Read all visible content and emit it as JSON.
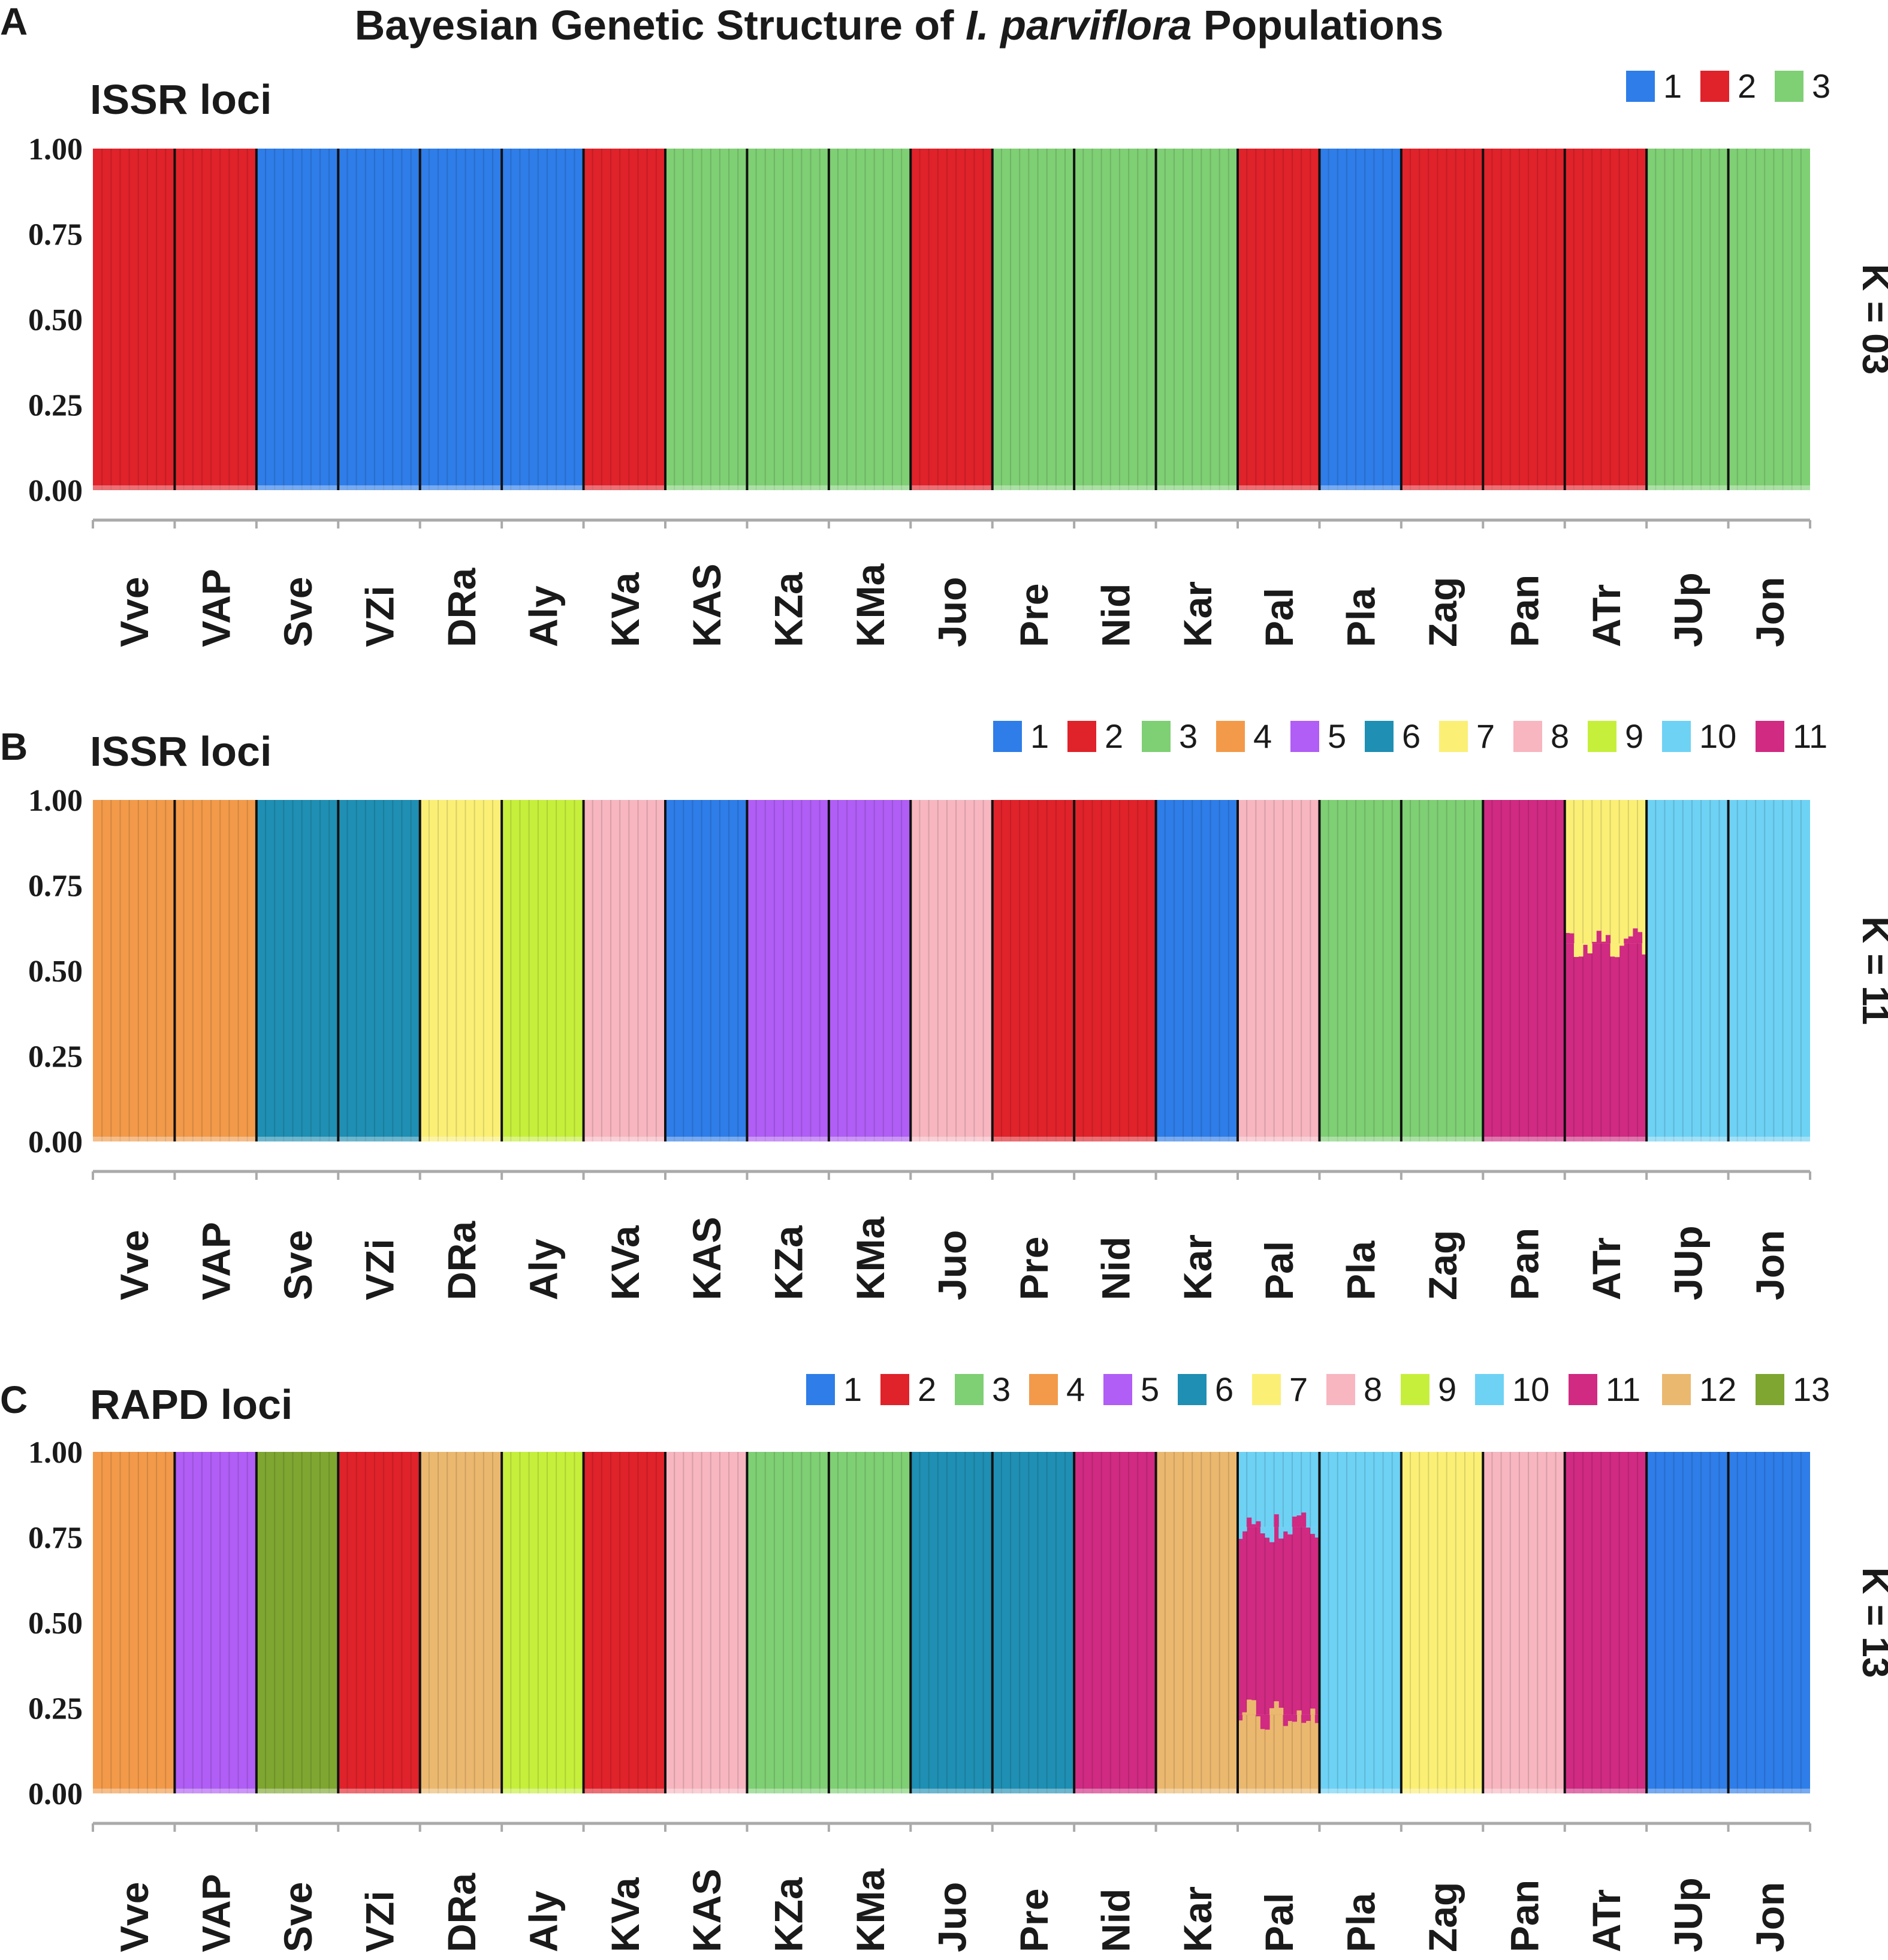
{
  "title": {
    "before": "Bayesian Genetic  Structure of ",
    "italic": "I. parviflora",
    "after": " Populations"
  },
  "colors": {
    "1": "#2e7de8",
    "2": "#e0222a",
    "3": "#7fcf74",
    "4": "#f29a4a",
    "5": "#b05ef5",
    "6": "#1f8fb3",
    "7": "#fbef76",
    "8": "#f7b6c0",
    "9": "#c6ef3c",
    "10": "#6ed2f5",
    "11": "#d02a82",
    "12": "#ebb86f",
    "13": "#7ea631"
  },
  "chart_data": [
    {
      "type": "bar",
      "stacked": true,
      "panel": "A",
      "subtitle": "ISSR loci",
      "k_label": "K = 03",
      "ylabels": [
        "1.00",
        "0.75",
        "0.50",
        "0.25",
        "0.00"
      ],
      "ylim": [
        0,
        1
      ],
      "legend": [
        "1",
        "2",
        "3"
      ],
      "categories": [
        "Vve",
        "VAP",
        "Sve",
        "VZi",
        "DRa",
        "Aly",
        "KVa",
        "KAS",
        "KZa",
        "KMa",
        "Juo",
        "Pre",
        "Nid",
        "Kar",
        "Pal",
        "Pla",
        "Zag",
        "Pan",
        "ATr",
        "JUp",
        "Jon"
      ],
      "assignments": [
        [
          {
            "c": "2",
            "v": 1
          }
        ],
        [
          {
            "c": "2",
            "v": 1
          }
        ],
        [
          {
            "c": "1",
            "v": 1
          }
        ],
        [
          {
            "c": "1",
            "v": 1
          }
        ],
        [
          {
            "c": "1",
            "v": 1
          }
        ],
        [
          {
            "c": "1",
            "v": 1
          }
        ],
        [
          {
            "c": "2",
            "v": 1
          }
        ],
        [
          {
            "c": "3",
            "v": 1
          }
        ],
        [
          {
            "c": "3",
            "v": 1
          }
        ],
        [
          {
            "c": "3",
            "v": 1
          }
        ],
        [
          {
            "c": "2",
            "v": 1
          }
        ],
        [
          {
            "c": "3",
            "v": 1
          }
        ],
        [
          {
            "c": "3",
            "v": 1
          }
        ],
        [
          {
            "c": "3",
            "v": 1
          }
        ],
        [
          {
            "c": "2",
            "v": 1
          }
        ],
        [
          {
            "c": "1",
            "v": 1
          }
        ],
        [
          {
            "c": "2",
            "v": 1
          }
        ],
        [
          {
            "c": "2",
            "v": 1
          }
        ],
        [
          {
            "c": "2",
            "v": 1
          }
        ],
        [
          {
            "c": "3",
            "v": 1
          }
        ],
        [
          {
            "c": "3",
            "v": 1
          }
        ]
      ]
    },
    {
      "type": "bar",
      "stacked": true,
      "panel": "B",
      "subtitle": "ISSR loci",
      "k_label": "K = 11",
      "ylabels": [
        "1.00",
        "0.75",
        "0.50",
        "0.25",
        "0.00"
      ],
      "ylim": [
        0,
        1
      ],
      "legend": [
        "1",
        "2",
        "3",
        "4",
        "5",
        "6",
        "7",
        "8",
        "9",
        "10",
        "11"
      ],
      "categories": [
        "Vve",
        "VAP",
        "Sve",
        "VZi",
        "DRa",
        "Aly",
        "KVa",
        "KAS",
        "KZa",
        "KMa",
        "Juo",
        "Pre",
        "Nid",
        "Kar",
        "Pal",
        "Pla",
        "Zag",
        "Pan",
        "ATr",
        "JUp",
        "Jon"
      ],
      "assignments": [
        [
          {
            "c": "4",
            "v": 1
          }
        ],
        [
          {
            "c": "4",
            "v": 1
          }
        ],
        [
          {
            "c": "6",
            "v": 1
          }
        ],
        [
          {
            "c": "6",
            "v": 1
          }
        ],
        [
          {
            "c": "7",
            "v": 1
          }
        ],
        [
          {
            "c": "9",
            "v": 1
          }
        ],
        [
          {
            "c": "8",
            "v": 1
          }
        ],
        [
          {
            "c": "1",
            "v": 1
          }
        ],
        [
          {
            "c": "5",
            "v": 1
          }
        ],
        [
          {
            "c": "5",
            "v": 1
          }
        ],
        [
          {
            "c": "8",
            "v": 1
          }
        ],
        [
          {
            "c": "2",
            "v": 1
          }
        ],
        [
          {
            "c": "2",
            "v": 1
          }
        ],
        [
          {
            "c": "1",
            "v": 1
          }
        ],
        [
          {
            "c": "8",
            "v": 1
          }
        ],
        [
          {
            "c": "3",
            "v": 1
          }
        ],
        [
          {
            "c": "3",
            "v": 1
          }
        ],
        [
          {
            "c": "11",
            "v": 1
          }
        ],
        [
          {
            "c": "11",
            "v": 0.58
          },
          {
            "c": "7",
            "v": 0.42
          }
        ],
        [
          {
            "c": "10",
            "v": 1
          }
        ],
        [
          {
            "c": "10",
            "v": 1
          }
        ]
      ]
    },
    {
      "type": "bar",
      "stacked": true,
      "panel": "C",
      "subtitle": "RAPD loci",
      "k_label": "K = 13",
      "ylabels": [
        "1.00",
        "0.75",
        "0.50",
        "0.25",
        "0.00"
      ],
      "ylim": [
        0,
        1
      ],
      "legend": [
        "1",
        "2",
        "3",
        "4",
        "5",
        "6",
        "7",
        "8",
        "9",
        "10",
        "11",
        "12",
        "13"
      ],
      "categories": [
        "Vve",
        "VAP",
        "Sve",
        "VZi",
        "DRa",
        "Aly",
        "KVa",
        "KAS",
        "KZa",
        "KMa",
        "Juo",
        "Pre",
        "Nid",
        "Kar",
        "Pal",
        "Pla",
        "Zag",
        "Pan",
        "ATr",
        "JUp",
        "Jon"
      ],
      "assignments": [
        [
          {
            "c": "4",
            "v": 1
          }
        ],
        [
          {
            "c": "5",
            "v": 1
          }
        ],
        [
          {
            "c": "13",
            "v": 1
          }
        ],
        [
          {
            "c": "2",
            "v": 1
          }
        ],
        [
          {
            "c": "12",
            "v": 1
          }
        ],
        [
          {
            "c": "9",
            "v": 1
          }
        ],
        [
          {
            "c": "2",
            "v": 1
          }
        ],
        [
          {
            "c": "8",
            "v": 1
          }
        ],
        [
          {
            "c": "3",
            "v": 1
          }
        ],
        [
          {
            "c": "3",
            "v": 1
          }
        ],
        [
          {
            "c": "6",
            "v": 1
          }
        ],
        [
          {
            "c": "6",
            "v": 1
          }
        ],
        [
          {
            "c": "11",
            "v": 1
          }
        ],
        [
          {
            "c": "12",
            "v": 1
          }
        ],
        [
          {
            "c": "12",
            "v": 0.23
          },
          {
            "c": "11",
            "v": 0.55
          },
          {
            "c": "10",
            "v": 0.22
          }
        ],
        [
          {
            "c": "10",
            "v": 1
          }
        ],
        [
          {
            "c": "7",
            "v": 1
          }
        ],
        [
          {
            "c": "8",
            "v": 1
          }
        ],
        [
          {
            "c": "11",
            "v": 1
          }
        ],
        [
          {
            "c": "1",
            "v": 1
          }
        ],
        [
          {
            "c": "1",
            "v": 1
          }
        ]
      ]
    }
  ]
}
